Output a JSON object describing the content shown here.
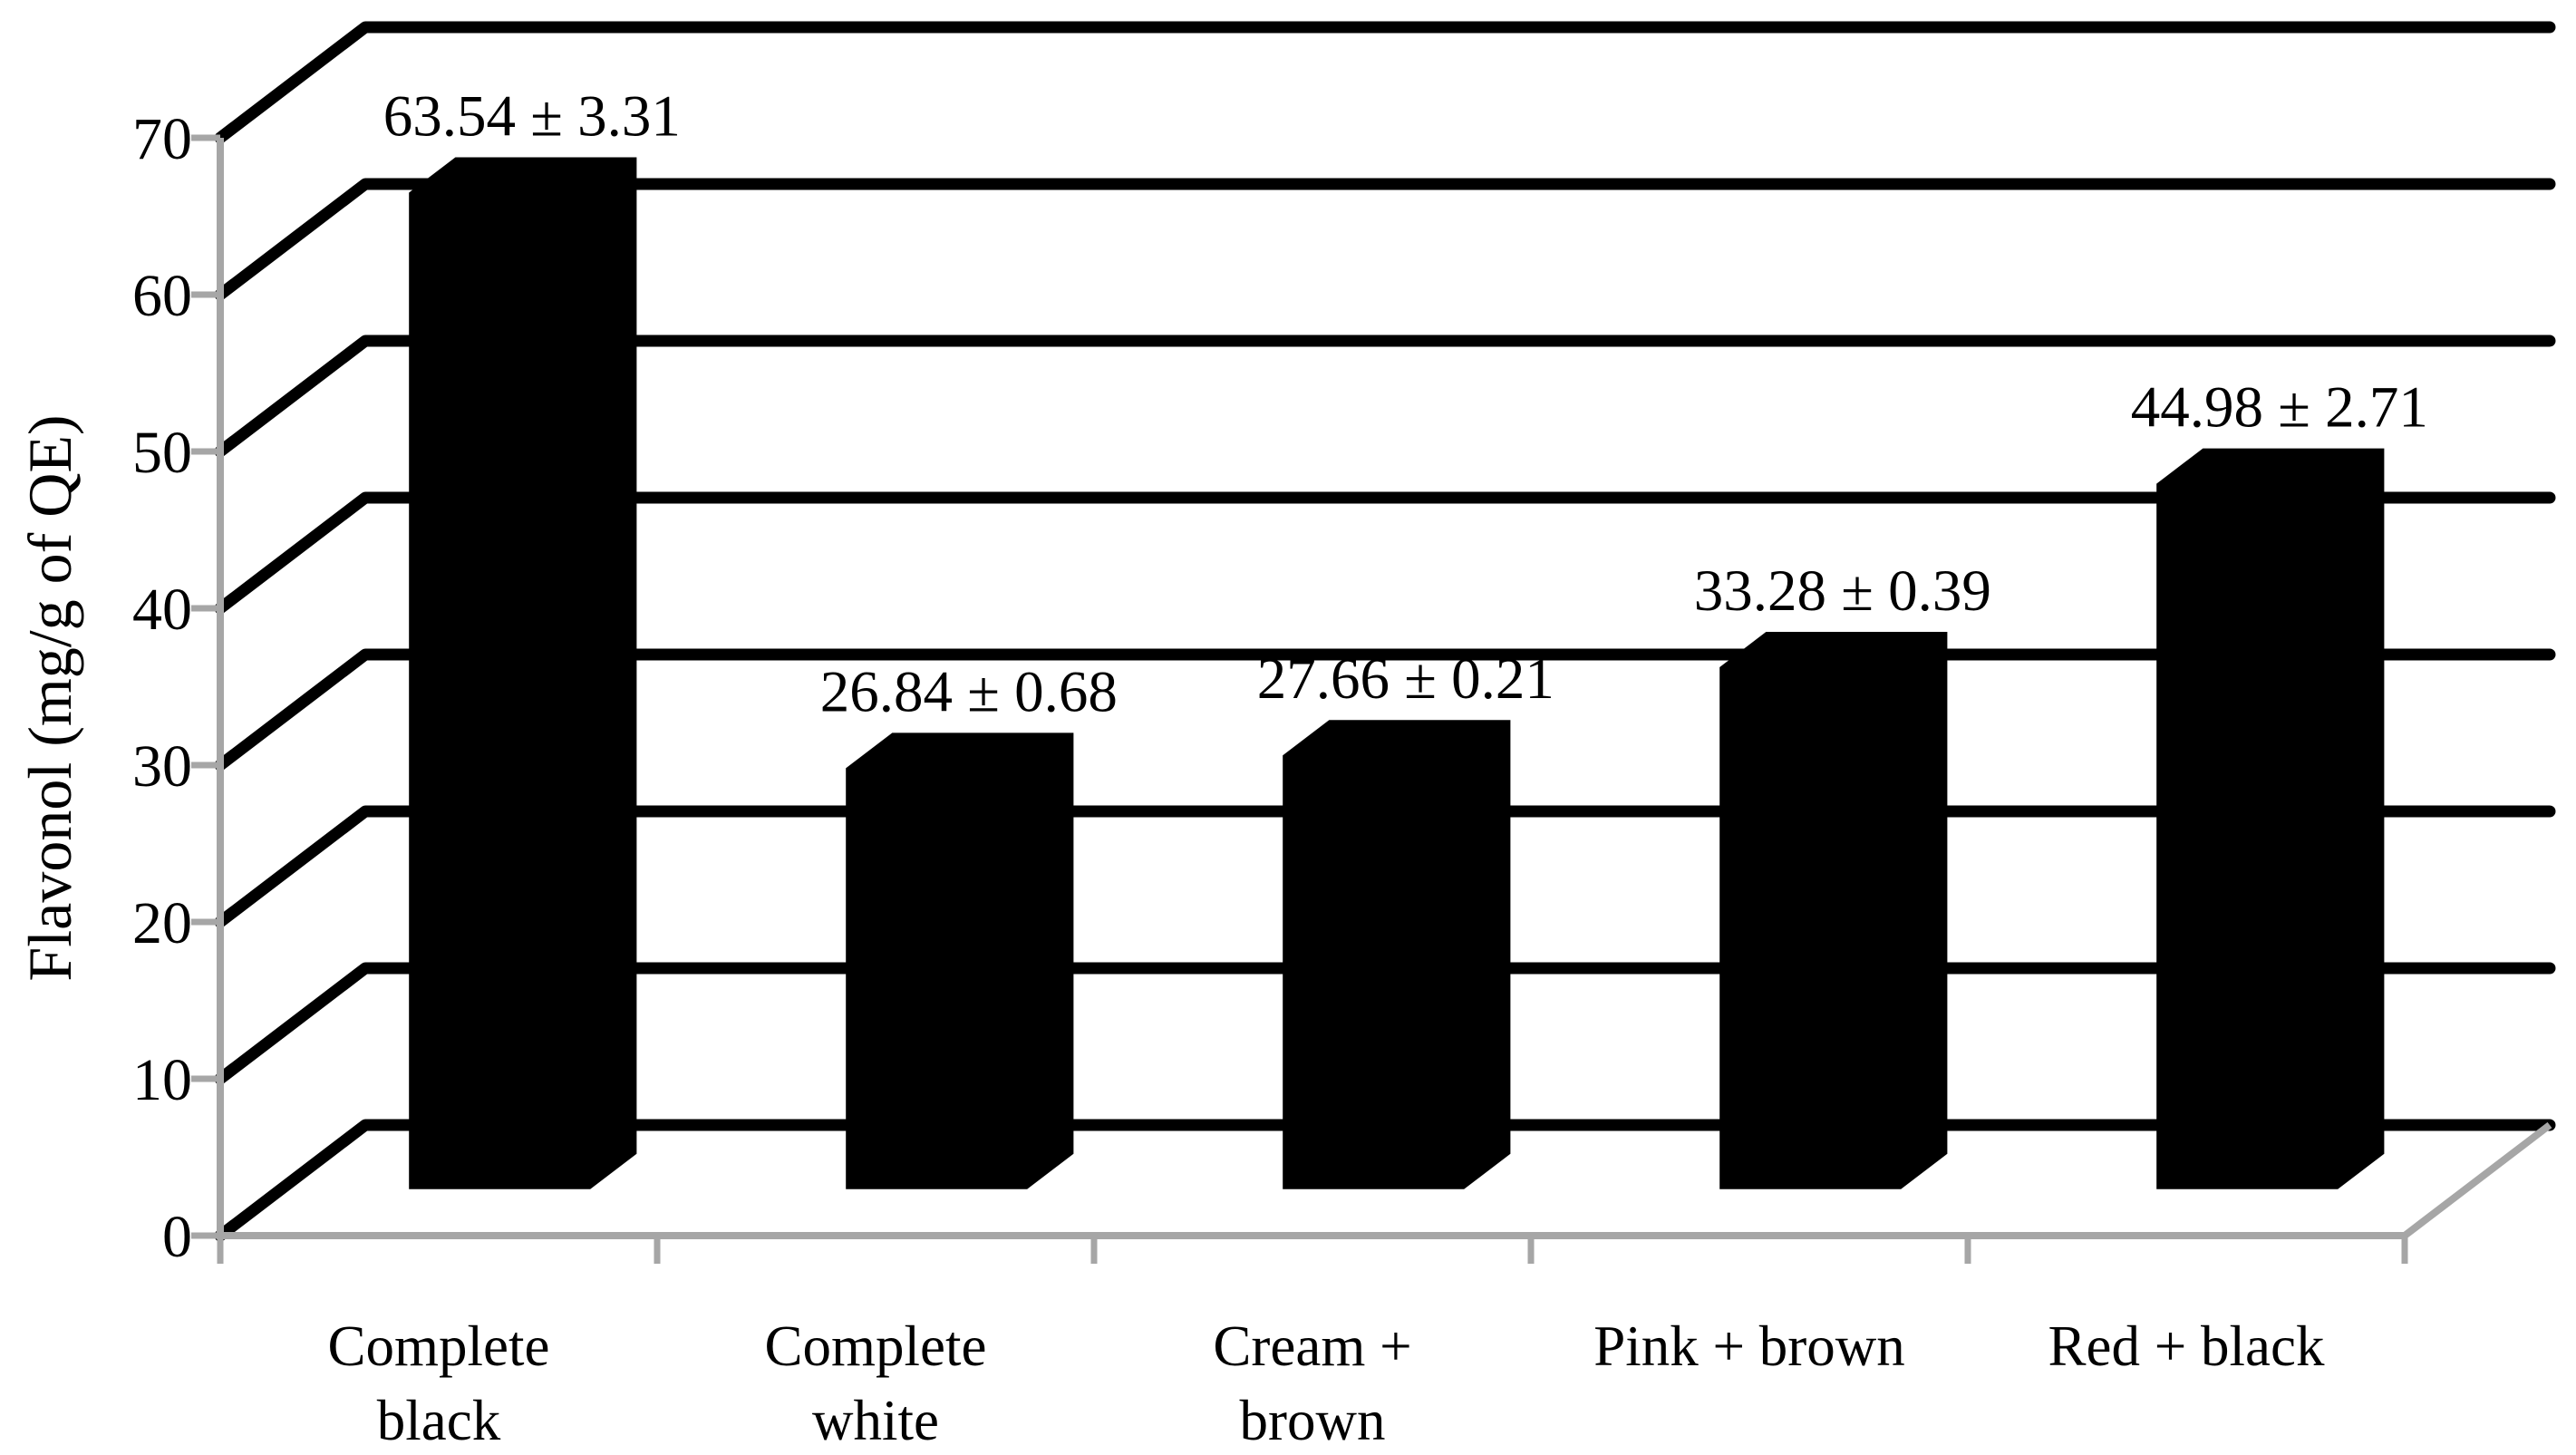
{
  "chart_data": {
    "type": "bar",
    "style": "excel-3d-column",
    "title": "",
    "xlabel": "",
    "ylabel": "Flavonol (mg/g of QE)",
    "categories": [
      "Complete\nblack",
      "Complete\nwhite",
      "Cream +\nbrown",
      "Pink + brown",
      "Red + black"
    ],
    "values": [
      63.54,
      26.84,
      27.66,
      33.28,
      44.98
    ],
    "errors": [
      3.31,
      0.68,
      0.21,
      0.39,
      2.71
    ],
    "data_labels": [
      "63.54 ± 3.31",
      "26.84 ± 0.68",
      "27.66 ± 0.21",
      "33.28 ± 0.39",
      "44.98 ± 2.71"
    ],
    "ylim": [
      0,
      70
    ],
    "ytick_step": 10,
    "ytick_labels": [
      "0",
      "10",
      "20",
      "30",
      "40",
      "50",
      "60",
      "70"
    ],
    "grid": true,
    "legend": "none",
    "colors": {
      "bar": "#000000",
      "gridline": "#000000",
      "axis_line": "#a6a6a6",
      "text": "#000000",
      "background": "#ffffff"
    }
  }
}
